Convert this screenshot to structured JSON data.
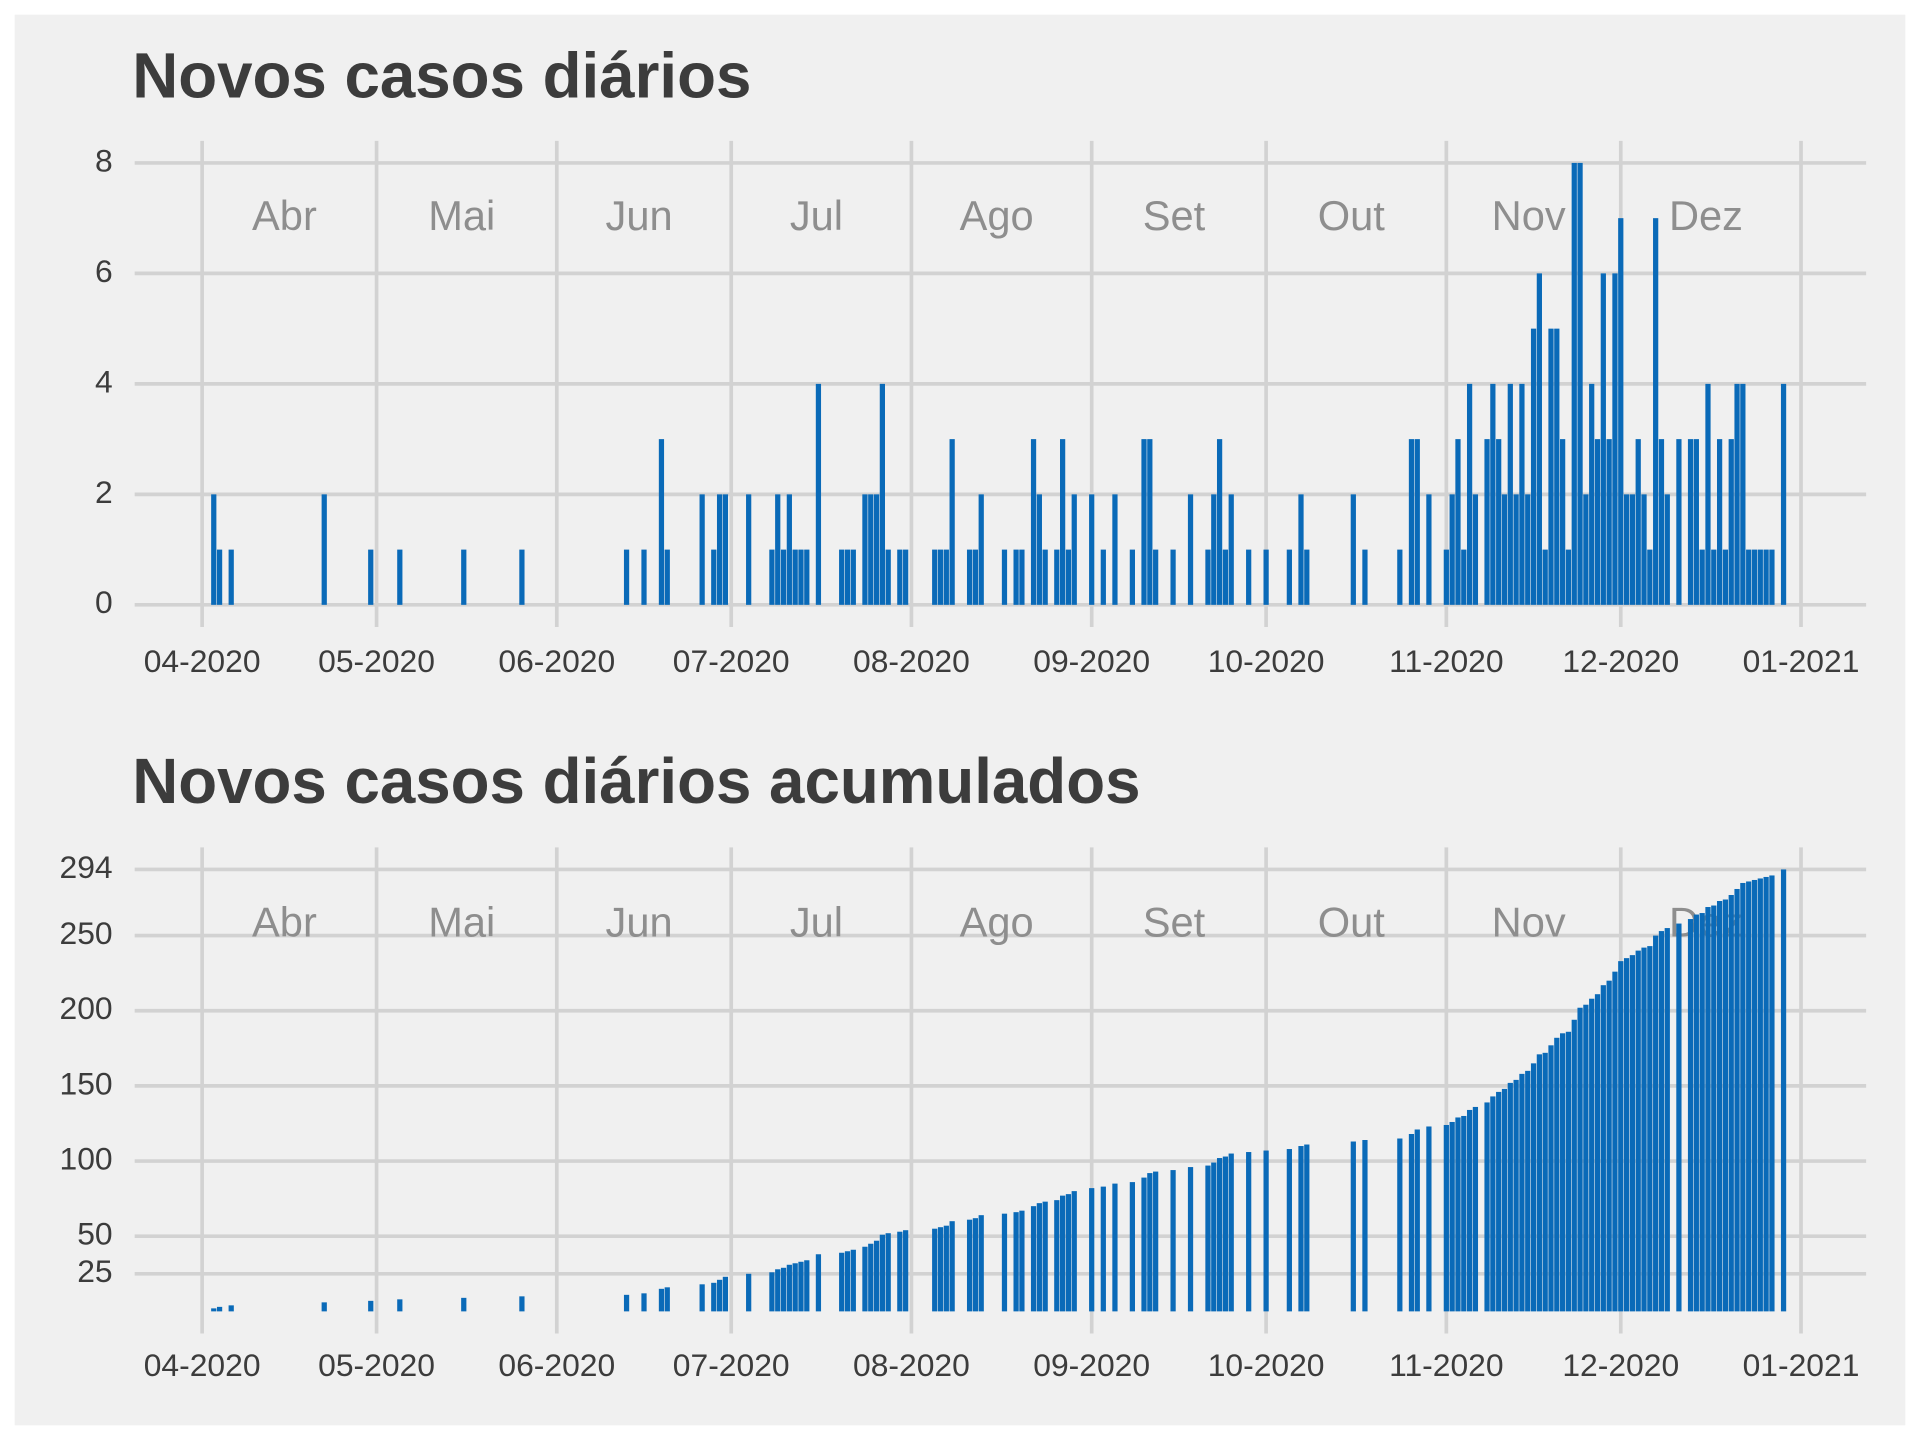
{
  "chart_data": [
    {
      "type": "bar",
      "title": "Novos casos diários",
      "color": "#0a6ab8",
      "grid": true,
      "month_labels": [
        "Abr",
        "Mai",
        "Jun",
        "Jul",
        "Ago",
        "Set",
        "Out",
        "Nov",
        "Dez"
      ],
      "xlim": [
        80.4,
        378.2
      ],
      "xticks": [
        {
          "value": 92,
          "label": "04-2020"
        },
        {
          "value": 122,
          "label": "05-2020"
        },
        {
          "value": 153,
          "label": "06-2020"
        },
        {
          "value": 183,
          "label": "07-2020"
        },
        {
          "value": 214,
          "label": "08-2020"
        },
        {
          "value": 245,
          "label": "09-2020"
        },
        {
          "value": 275,
          "label": "10-2020"
        },
        {
          "value": 306,
          "label": "11-2020"
        },
        {
          "value": 336,
          "label": "12-2020"
        },
        {
          "value": 367,
          "label": "01-2021"
        }
      ],
      "ylim": [
        -0.4,
        8.4
      ],
      "yticks": [
        0,
        2,
        4,
        6,
        8
      ],
      "x": [
        94,
        95,
        97,
        113,
        121,
        126,
        137,
        147,
        165,
        168,
        171,
        172,
        178,
        180,
        181,
        182,
        186,
        190,
        191,
        192,
        193,
        194,
        195,
        196,
        198,
        202,
        203,
        204,
        206,
        207,
        208,
        209,
        210,
        212,
        213,
        218,
        219,
        220,
        221,
        224,
        225,
        226,
        230,
        232,
        233,
        235,
        236,
        237,
        239,
        240,
        241,
        242,
        245,
        247,
        249,
        252,
        254,
        255,
        256,
        259,
        262,
        265,
        266,
        267,
        268,
        269,
        272,
        275,
        279,
        281,
        282,
        290,
        292,
        298,
        300,
        301,
        303,
        306,
        307,
        308,
        309,
        310,
        311,
        313,
        314,
        315,
        316,
        317,
        318,
        319,
        320,
        321,
        322,
        323,
        324,
        325,
        326,
        327,
        328,
        329,
        330,
        331,
        332,
        333,
        334,
        335,
        336,
        337,
        338,
        339,
        340,
        341,
        342,
        343,
        344,
        346,
        348,
        349,
        350,
        351,
        352,
        353,
        354,
        355,
        356,
        357,
        358,
        359,
        360,
        361,
        362,
        364
      ],
      "values": [
        2,
        1,
        1,
        2,
        1,
        1,
        1,
        1,
        1,
        1,
        3,
        1,
        2,
        1,
        2,
        2,
        2,
        1,
        2,
        1,
        2,
        1,
        1,
        1,
        4,
        1,
        1,
        1,
        2,
        2,
        2,
        4,
        1,
        1,
        1,
        1,
        1,
        1,
        3,
        1,
        1,
        2,
        1,
        1,
        1,
        3,
        2,
        1,
        1,
        3,
        1,
        2,
        2,
        1,
        2,
        1,
        3,
        3,
        1,
        1,
        2,
        1,
        2,
        3,
        1,
        2,
        1,
        1,
        1,
        2,
        1,
        2,
        1,
        1,
        3,
        3,
        2,
        1,
        2,
        3,
        1,
        4,
        2,
        3,
        4,
        3,
        2,
        4,
        2,
        4,
        2,
        5,
        6,
        1,
        5,
        5,
        3,
        1,
        8,
        8,
        2,
        4,
        3,
        6,
        3,
        6,
        7,
        2,
        2,
        3,
        2,
        1,
        7,
        3,
        2,
        3,
        3,
        3,
        1,
        4,
        1,
        3,
        1,
        3,
        4,
        4,
        1,
        1,
        1,
        1,
        1,
        4
      ]
    },
    {
      "type": "bar",
      "title": "Novos casos diários acumulados",
      "color": "#0a6ab8",
      "grid": true,
      "month_labels": [
        "Abr",
        "Mai",
        "Jun",
        "Jul",
        "Ago",
        "Set",
        "Out",
        "Nov",
        "Dez"
      ],
      "xlim": [
        80.4,
        378.2
      ],
      "xticks": [
        {
          "value": 92,
          "label": "04-2020"
        },
        {
          "value": 122,
          "label": "05-2020"
        },
        {
          "value": 153,
          "label": "06-2020"
        },
        {
          "value": 183,
          "label": "07-2020"
        },
        {
          "value": 214,
          "label": "08-2020"
        },
        {
          "value": 245,
          "label": "09-2020"
        },
        {
          "value": 275,
          "label": "10-2020"
        },
        {
          "value": 306,
          "label": "11-2020"
        },
        {
          "value": 336,
          "label": "12-2020"
        },
        {
          "value": 367,
          "label": "01-2021"
        }
      ],
      "ylim": [
        -14.7,
        308.7
      ],
      "yticks": [
        25,
        50,
        100,
        150,
        200,
        250,
        294
      ],
      "x": [
        94,
        95,
        97,
        113,
        121,
        126,
        137,
        147,
        165,
        168,
        171,
        172,
        178,
        180,
        181,
        182,
        186,
        190,
        191,
        192,
        193,
        194,
        195,
        196,
        198,
        202,
        203,
        204,
        206,
        207,
        208,
        209,
        210,
        212,
        213,
        218,
        219,
        220,
        221,
        224,
        225,
        226,
        230,
        232,
        233,
        235,
        236,
        237,
        239,
        240,
        241,
        242,
        245,
        247,
        249,
        252,
        254,
        255,
        256,
        259,
        262,
        265,
        266,
        267,
        268,
        269,
        272,
        275,
        279,
        281,
        282,
        290,
        292,
        298,
        300,
        301,
        303,
        306,
        307,
        308,
        309,
        310,
        311,
        313,
        314,
        315,
        316,
        317,
        318,
        319,
        320,
        321,
        322,
        323,
        324,
        325,
        326,
        327,
        328,
        329,
        330,
        331,
        332,
        333,
        334,
        335,
        336,
        337,
        338,
        339,
        340,
        341,
        342,
        343,
        344,
        346,
        348,
        349,
        350,
        351,
        352,
        353,
        354,
        355,
        356,
        357,
        358,
        359,
        360,
        361,
        362,
        364
      ],
      "values": [
        2,
        3,
        4,
        6,
        7,
        8,
        9,
        10,
        11,
        12,
        15,
        16,
        18,
        19,
        21,
        23,
        25,
        26,
        28,
        29,
        31,
        32,
        33,
        34,
        38,
        39,
        40,
        41,
        43,
        45,
        47,
        51,
        52,
        53,
        54,
        55,
        56,
        57,
        60,
        61,
        62,
        64,
        65,
        66,
        67,
        70,
        72,
        73,
        74,
        77,
        78,
        80,
        82,
        83,
        85,
        86,
        89,
        92,
        93,
        94,
        96,
        97,
        99,
        102,
        103,
        105,
        106,
        107,
        108,
        110,
        111,
        113,
        114,
        115,
        118,
        121,
        123,
        124,
        126,
        129,
        130,
        134,
        136,
        139,
        143,
        146,
        148,
        152,
        154,
        158,
        160,
        165,
        171,
        172,
        177,
        182,
        185,
        186,
        194,
        202,
        204,
        208,
        211,
        217,
        220,
        226,
        233,
        235,
        237,
        240,
        242,
        243,
        250,
        253,
        255,
        258,
        261,
        264,
        265,
        269,
        270,
        273,
        274,
        277,
        281,
        285,
        286,
        287,
        288,
        289,
        290,
        294
      ]
    }
  ]
}
